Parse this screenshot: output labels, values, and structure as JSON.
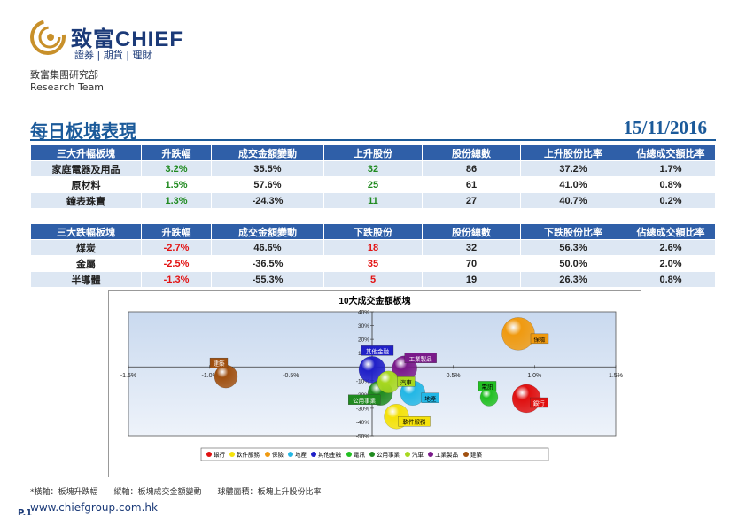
{
  "header": {
    "brand_cn": "致富",
    "brand_en": "CHIEF",
    "brand_sub": "證券 | 期貨 | 理財",
    "dept_cn": "致富集團研究部",
    "dept_en": "Research Team"
  },
  "title": "每日板塊表現",
  "date": "15/11/2016",
  "rising_table": {
    "headers": [
      "三大升幅板塊",
      "升跌幅",
      "成交金額變動",
      "上升股份",
      "股份總數",
      "上升股份比率",
      "佔總成交額比率"
    ],
    "rows": [
      [
        "家庭電器及用品",
        "3.2%",
        "35.5%",
        "32",
        "86",
        "37.2%",
        "1.7%"
      ],
      [
        "原材料",
        "1.5%",
        "57.6%",
        "25",
        "61",
        "41.0%",
        "0.8%"
      ],
      [
        "鐘表珠寶",
        "1.3%",
        "-24.3%",
        "11",
        "27",
        "40.7%",
        "0.2%"
      ]
    ]
  },
  "falling_table": {
    "headers": [
      "三大跌幅板塊",
      "升跌幅",
      "成交金額變動",
      "下跌股份",
      "股份總數",
      "下跌股份比率",
      "佔總成交額比率"
    ],
    "rows": [
      [
        "煤炭",
        "-2.7%",
        "46.6%",
        "18",
        "32",
        "56.3%",
        "2.6%"
      ],
      [
        "金屬",
        "-2.5%",
        "-36.5%",
        "35",
        "70",
        "50.0%",
        "2.0%"
      ],
      [
        "半導體",
        "-1.3%",
        "-55.3%",
        "5",
        "19",
        "26.3%",
        "0.8%"
      ]
    ]
  },
  "chart_data": {
    "type": "scatter",
    "title": "10大成交金額板塊",
    "xlim": [
      -1.5,
      1.5
    ],
    "ylim": [
      -50,
      40
    ],
    "x_ticks": [
      "-1.5%",
      "-1.0%",
      "-0.5%",
      "0.0%",
      "0.5%",
      "1.0%",
      "1.5%"
    ],
    "y_ticks": [
      "40%",
      "30%",
      "20%",
      "10%",
      "0%",
      "-10%",
      "-20%",
      "-30%",
      "-40%",
      "-50%"
    ],
    "grid": false,
    "legend_position": "bottom",
    "series": [
      {
        "name": "銀行",
        "x": 0.95,
        "y": -23,
        "size": 32,
        "color": "#e01010"
      },
      {
        "name": "軟件服務",
        "x": 0.15,
        "y": -36,
        "size": 28,
        "color": "#f5e20a"
      },
      {
        "name": "保險",
        "x": 0.9,
        "y": 24,
        "size": 37,
        "color": "#f09a10"
      },
      {
        "name": "地產",
        "x": 0.25,
        "y": -19,
        "size": 28,
        "color": "#23b7e5"
      },
      {
        "name": "其他金融",
        "x": 0.0,
        "y": -2,
        "size": 30,
        "color": "#2020c8"
      },
      {
        "name": "電訊",
        "x": 0.72,
        "y": -22,
        "size": 20,
        "color": "#22c022"
      },
      {
        "name": "公用事業",
        "x": 0.05,
        "y": -19,
        "size": 28,
        "color": "#1f8a1f"
      },
      {
        "name": "汽車",
        "x": 0.1,
        "y": -11,
        "size": 25,
        "color": "#a8d820"
      },
      {
        "name": "工業製品",
        "x": 0.2,
        "y": -1,
        "size": 28,
        "color": "#7a1a8a"
      },
      {
        "name": "建築",
        "x": -0.9,
        "y": -7,
        "size": 26,
        "color": "#a05010"
      }
    ]
  },
  "footnote": "*橫軸：板塊升跌幅　　縱軸：板塊成交金額變動　　球體面積：板塊上升股份比率",
  "url": "www.chiefgroup.com.hk",
  "page": "P.1"
}
